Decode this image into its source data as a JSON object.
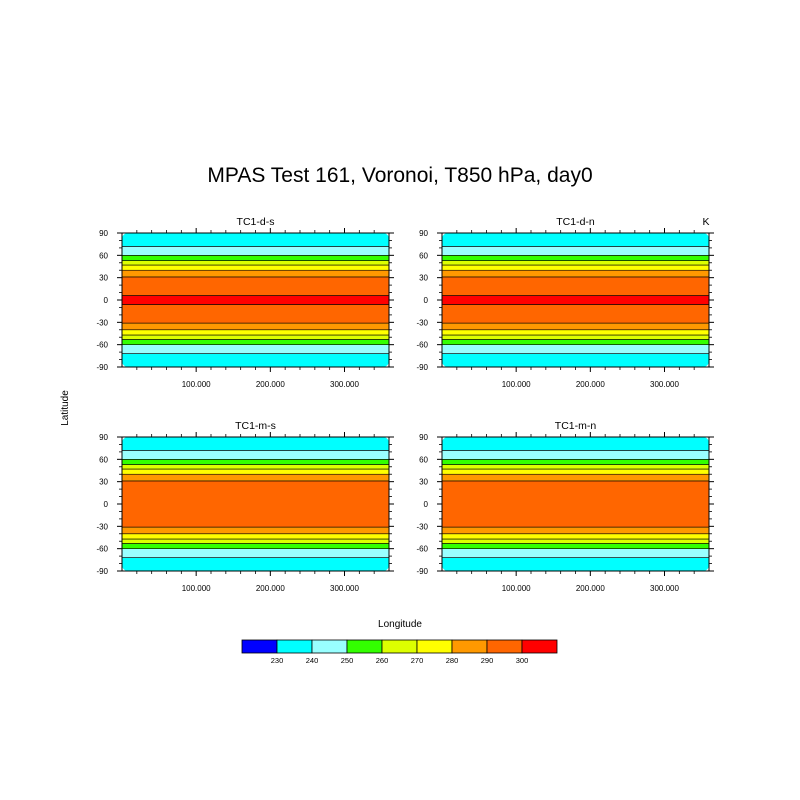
{
  "title": "MPAS Test 161,  Voronoi, T850 hPa, day0",
  "ylabel": "Latitude",
  "xlabel": "Longitude",
  "units": "K",
  "chart_data": [
    {
      "type": "heatmap",
      "title": "TC1-d-s",
      "xlim": [
        0,
        360
      ],
      "ylim": [
        -90,
        90
      ],
      "xticks": [
        "100.000",
        "200.000",
        "300.000"
      ],
      "xtick_values": [
        100,
        200,
        300
      ],
      "yticks": [
        "90",
        "60",
        "30",
        "0",
        "-30",
        "-60",
        "-90"
      ],
      "ytick_values": [
        90,
        60,
        30,
        0,
        -30,
        -60,
        -90
      ],
      "bands": [
        {
          "lat_min": -90,
          "lat_max": -72,
          "color_index": 1
        },
        {
          "lat_min": -72,
          "lat_max": -60,
          "color_index": 2
        },
        {
          "lat_min": -60,
          "lat_max": -53,
          "color_index": 3
        },
        {
          "lat_min": -53,
          "lat_max": -47,
          "color_index": 4
        },
        {
          "lat_min": -47,
          "lat_max": -40,
          "color_index": 5
        },
        {
          "lat_min": -40,
          "lat_max": -31,
          "color_index": 6
        },
        {
          "lat_min": -31,
          "lat_max": -6,
          "color_index": 7
        },
        {
          "lat_min": -6,
          "lat_max": 6,
          "color_index": 8
        },
        {
          "lat_min": 6,
          "lat_max": 31,
          "color_index": 7
        },
        {
          "lat_min": 31,
          "lat_max": 40,
          "color_index": 6
        },
        {
          "lat_min": 40,
          "lat_max": 47,
          "color_index": 5
        },
        {
          "lat_min": 47,
          "lat_max": 53,
          "color_index": 4
        },
        {
          "lat_min": 53,
          "lat_max": 60,
          "color_index": 3
        },
        {
          "lat_min": 60,
          "lat_max": 72,
          "color_index": 2
        },
        {
          "lat_min": 72,
          "lat_max": 90,
          "color_index": 1
        }
      ]
    },
    {
      "type": "heatmap",
      "title": "TC1-d-n",
      "xlim": [
        0,
        360
      ],
      "ylim": [
        -90,
        90
      ],
      "xticks": [
        "100.000",
        "200.000",
        "300.000"
      ],
      "xtick_values": [
        100,
        200,
        300
      ],
      "yticks": [
        "90",
        "60",
        "30",
        "0",
        "-30",
        "-60",
        "-90"
      ],
      "ytick_values": [
        90,
        60,
        30,
        0,
        -30,
        -60,
        -90
      ],
      "bands": [
        {
          "lat_min": -90,
          "lat_max": -72,
          "color_index": 1
        },
        {
          "lat_min": -72,
          "lat_max": -60,
          "color_index": 2
        },
        {
          "lat_min": -60,
          "lat_max": -53,
          "color_index": 3
        },
        {
          "lat_min": -53,
          "lat_max": -47,
          "color_index": 4
        },
        {
          "lat_min": -47,
          "lat_max": -40,
          "color_index": 5
        },
        {
          "lat_min": -40,
          "lat_max": -31,
          "color_index": 6
        },
        {
          "lat_min": -31,
          "lat_max": -6,
          "color_index": 7
        },
        {
          "lat_min": -6,
          "lat_max": 6,
          "color_index": 8
        },
        {
          "lat_min": 6,
          "lat_max": 31,
          "color_index": 7
        },
        {
          "lat_min": 31,
          "lat_max": 40,
          "color_index": 6
        },
        {
          "lat_min": 40,
          "lat_max": 47,
          "color_index": 5
        },
        {
          "lat_min": 47,
          "lat_max": 53,
          "color_index": 4
        },
        {
          "lat_min": 53,
          "lat_max": 60,
          "color_index": 3
        },
        {
          "lat_min": 60,
          "lat_max": 72,
          "color_index": 2
        },
        {
          "lat_min": 72,
          "lat_max": 90,
          "color_index": 1
        }
      ]
    },
    {
      "type": "heatmap",
      "title": "TC1-m-s",
      "xlim": [
        0,
        360
      ],
      "ylim": [
        -90,
        90
      ],
      "xticks": [
        "100.000",
        "200.000",
        "300.000"
      ],
      "xtick_values": [
        100,
        200,
        300
      ],
      "yticks": [
        "90",
        "60",
        "30",
        "0",
        "-30",
        "-60",
        "-90"
      ],
      "ytick_values": [
        90,
        60,
        30,
        0,
        -30,
        -60,
        -90
      ],
      "bands": [
        {
          "lat_min": -90,
          "lat_max": -72,
          "color_index": 1
        },
        {
          "lat_min": -72,
          "lat_max": -60,
          "color_index": 2
        },
        {
          "lat_min": -60,
          "lat_max": -53,
          "color_index": 3
        },
        {
          "lat_min": -53,
          "lat_max": -47,
          "color_index": 4
        },
        {
          "lat_min": -47,
          "lat_max": -40,
          "color_index": 5
        },
        {
          "lat_min": -40,
          "lat_max": -31,
          "color_index": 6
        },
        {
          "lat_min": -31,
          "lat_max": 31,
          "color_index": 7
        },
        {
          "lat_min": 31,
          "lat_max": 40,
          "color_index": 6
        },
        {
          "lat_min": 40,
          "lat_max": 47,
          "color_index": 5
        },
        {
          "lat_min": 47,
          "lat_max": 53,
          "color_index": 4
        },
        {
          "lat_min": 53,
          "lat_max": 60,
          "color_index": 3
        },
        {
          "lat_min": 60,
          "lat_max": 72,
          "color_index": 2
        },
        {
          "lat_min": 72,
          "lat_max": 90,
          "color_index": 1
        }
      ]
    },
    {
      "type": "heatmap",
      "title": "TC1-m-n",
      "xlim": [
        0,
        360
      ],
      "ylim": [
        -90,
        90
      ],
      "xticks": [
        "100.000",
        "200.000",
        "300.000"
      ],
      "xtick_values": [
        100,
        200,
        300
      ],
      "yticks": [
        "90",
        "60",
        "30",
        "0",
        "-30",
        "-60",
        "-90"
      ],
      "ytick_values": [
        90,
        60,
        30,
        0,
        -30,
        -60,
        -90
      ],
      "bands": [
        {
          "lat_min": -90,
          "lat_max": -72,
          "color_index": 1
        },
        {
          "lat_min": -72,
          "lat_max": -60,
          "color_index": 2
        },
        {
          "lat_min": -60,
          "lat_max": -53,
          "color_index": 3
        },
        {
          "lat_min": -53,
          "lat_max": -47,
          "color_index": 4
        },
        {
          "lat_min": -47,
          "lat_max": -40,
          "color_index": 5
        },
        {
          "lat_min": -40,
          "lat_max": -31,
          "color_index": 6
        },
        {
          "lat_min": -31,
          "lat_max": 31,
          "color_index": 7
        },
        {
          "lat_min": 31,
          "lat_max": 40,
          "color_index": 6
        },
        {
          "lat_min": 40,
          "lat_max": 47,
          "color_index": 5
        },
        {
          "lat_min": 47,
          "lat_max": 53,
          "color_index": 4
        },
        {
          "lat_min": 53,
          "lat_max": 60,
          "color_index": 3
        },
        {
          "lat_min": 60,
          "lat_max": 72,
          "color_index": 2
        },
        {
          "lat_min": 72,
          "lat_max": 90,
          "color_index": 1
        }
      ]
    }
  ],
  "colorbar": {
    "colors": [
      "#0000ff",
      "#00ffff",
      "#99ffff",
      "#33ff00",
      "#ddff00",
      "#ffff00",
      "#ff9900",
      "#ff6600",
      "#ff0000"
    ],
    "labels": [
      "230",
      "240",
      "250",
      "260",
      "270",
      "280",
      "290",
      "300"
    ]
  }
}
